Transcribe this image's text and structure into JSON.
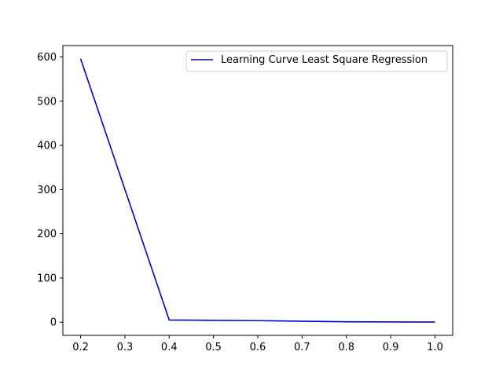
{
  "chart_data": {
    "type": "line",
    "title": "",
    "xlabel": "",
    "ylabel": "",
    "xlim": [
      0.16,
      1.04
    ],
    "ylim": [
      -29.8,
      625.8
    ],
    "x_ticks": [
      0.2,
      0.3,
      0.4,
      0.5,
      0.6,
      0.7,
      0.8,
      0.9,
      1.0
    ],
    "x_tick_labels": [
      "0.2",
      "0.3",
      "0.4",
      "0.5",
      "0.6",
      "0.7",
      "0.8",
      "0.9",
      "1.0"
    ],
    "y_ticks": [
      0,
      100,
      200,
      300,
      400,
      500,
      600
    ],
    "y_tick_labels": [
      "0",
      "100",
      "200",
      "300",
      "400",
      "500",
      "600"
    ],
    "grid": false,
    "legend_position": "top-right",
    "series": [
      {
        "name": "Learning Curve Least Square Regression",
        "color": "#0000cc",
        "x": [
          0.2,
          0.4,
          0.6,
          0.8,
          1.0
        ],
        "y": [
          596,
          5,
          3.5,
          1,
          0.3
        ]
      }
    ]
  }
}
